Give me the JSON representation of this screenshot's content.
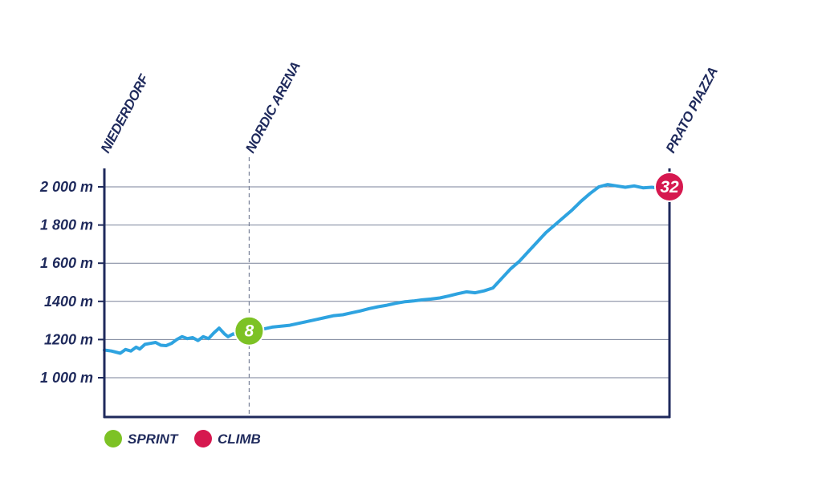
{
  "chart_data": {
    "type": "line",
    "xlabel": "",
    "ylabel": "",
    "x_unit": "km",
    "xlim": [
      0,
      32
    ],
    "ylim": [
      800,
      2100
    ],
    "y_ticks": [
      {
        "value": 1000,
        "label": "1 000 m"
      },
      {
        "value": 1200,
        "label": "1200 m"
      },
      {
        "value": 1400,
        "label": "1400 m"
      },
      {
        "value": 1600,
        "label": "1 600 m"
      },
      {
        "value": 1800,
        "label": "1 800 m"
      },
      {
        "value": 2000,
        "label": "2 000 m"
      }
    ],
    "grid": true,
    "places": [
      {
        "name": "NIEDERDORF",
        "x": 0
      },
      {
        "name": "NORDIC ARENA",
        "x": 8.2
      },
      {
        "name": "PRATO PIAZZA",
        "x": 32
      }
    ],
    "markers": [
      {
        "type": "sprint",
        "label": "8",
        "x": 8.2,
        "y": 1245,
        "color": "#7dc225"
      },
      {
        "type": "climb",
        "label": "32",
        "x": 32,
        "y": 2000,
        "color": "#d6184f"
      }
    ],
    "legend": [
      {
        "label": "SPRINT",
        "color": "#7dc225"
      },
      {
        "label": "CLIMB",
        "color": "#d6184f"
      }
    ],
    "series": [
      {
        "color": "#2ea3e0",
        "x": [
          0,
          0.4,
          0.9,
          1.2,
          1.5,
          1.8,
          2.0,
          2.3,
          2.6,
          2.9,
          3.2,
          3.5,
          3.8,
          4.1,
          4.4,
          4.7,
          5.0,
          5.3,
          5.6,
          5.9,
          6.2,
          6.5,
          6.8,
          7.0,
          7.3,
          7.6,
          7.9,
          8.2,
          8.6,
          9.0,
          9.5,
          10.0,
          10.5,
          11.0,
          11.5,
          12.0,
          12.5,
          13.0,
          13.5,
          14.0,
          14.5,
          15.0,
          15.5,
          16.0,
          16.5,
          17.0,
          17.5,
          18.0,
          18.5,
          19.0,
          19.5,
          20.0,
          20.5,
          21.0,
          21.5,
          22.0,
          22.5,
          23.0,
          23.5,
          24.0,
          24.5,
          25.0,
          25.5,
          26.0,
          26.5,
          27.0,
          27.5,
          28.0,
          28.5,
          29.0,
          29.5,
          30.0,
          30.5,
          31.0,
          31.5,
          32.0
        ],
        "y": [
          1145,
          1140,
          1128,
          1148,
          1140,
          1160,
          1150,
          1175,
          1180,
          1185,
          1170,
          1168,
          1180,
          1200,
          1215,
          1205,
          1210,
          1195,
          1215,
          1205,
          1235,
          1260,
          1230,
          1215,
          1230,
          1220,
          1235,
          1245,
          1250,
          1255,
          1265,
          1270,
          1275,
          1285,
          1295,
          1305,
          1315,
          1325,
          1330,
          1340,
          1350,
          1362,
          1372,
          1380,
          1390,
          1398,
          1402,
          1408,
          1412,
          1418,
          1428,
          1440,
          1450,
          1445,
          1455,
          1470,
          1520,
          1570,
          1610,
          1660,
          1710,
          1760,
          1800,
          1840,
          1880,
          1925,
          1965,
          2000,
          2012,
          2005,
          1998,
          2005,
          1995,
          1998,
          1992,
          2000
        ]
      }
    ]
  }
}
